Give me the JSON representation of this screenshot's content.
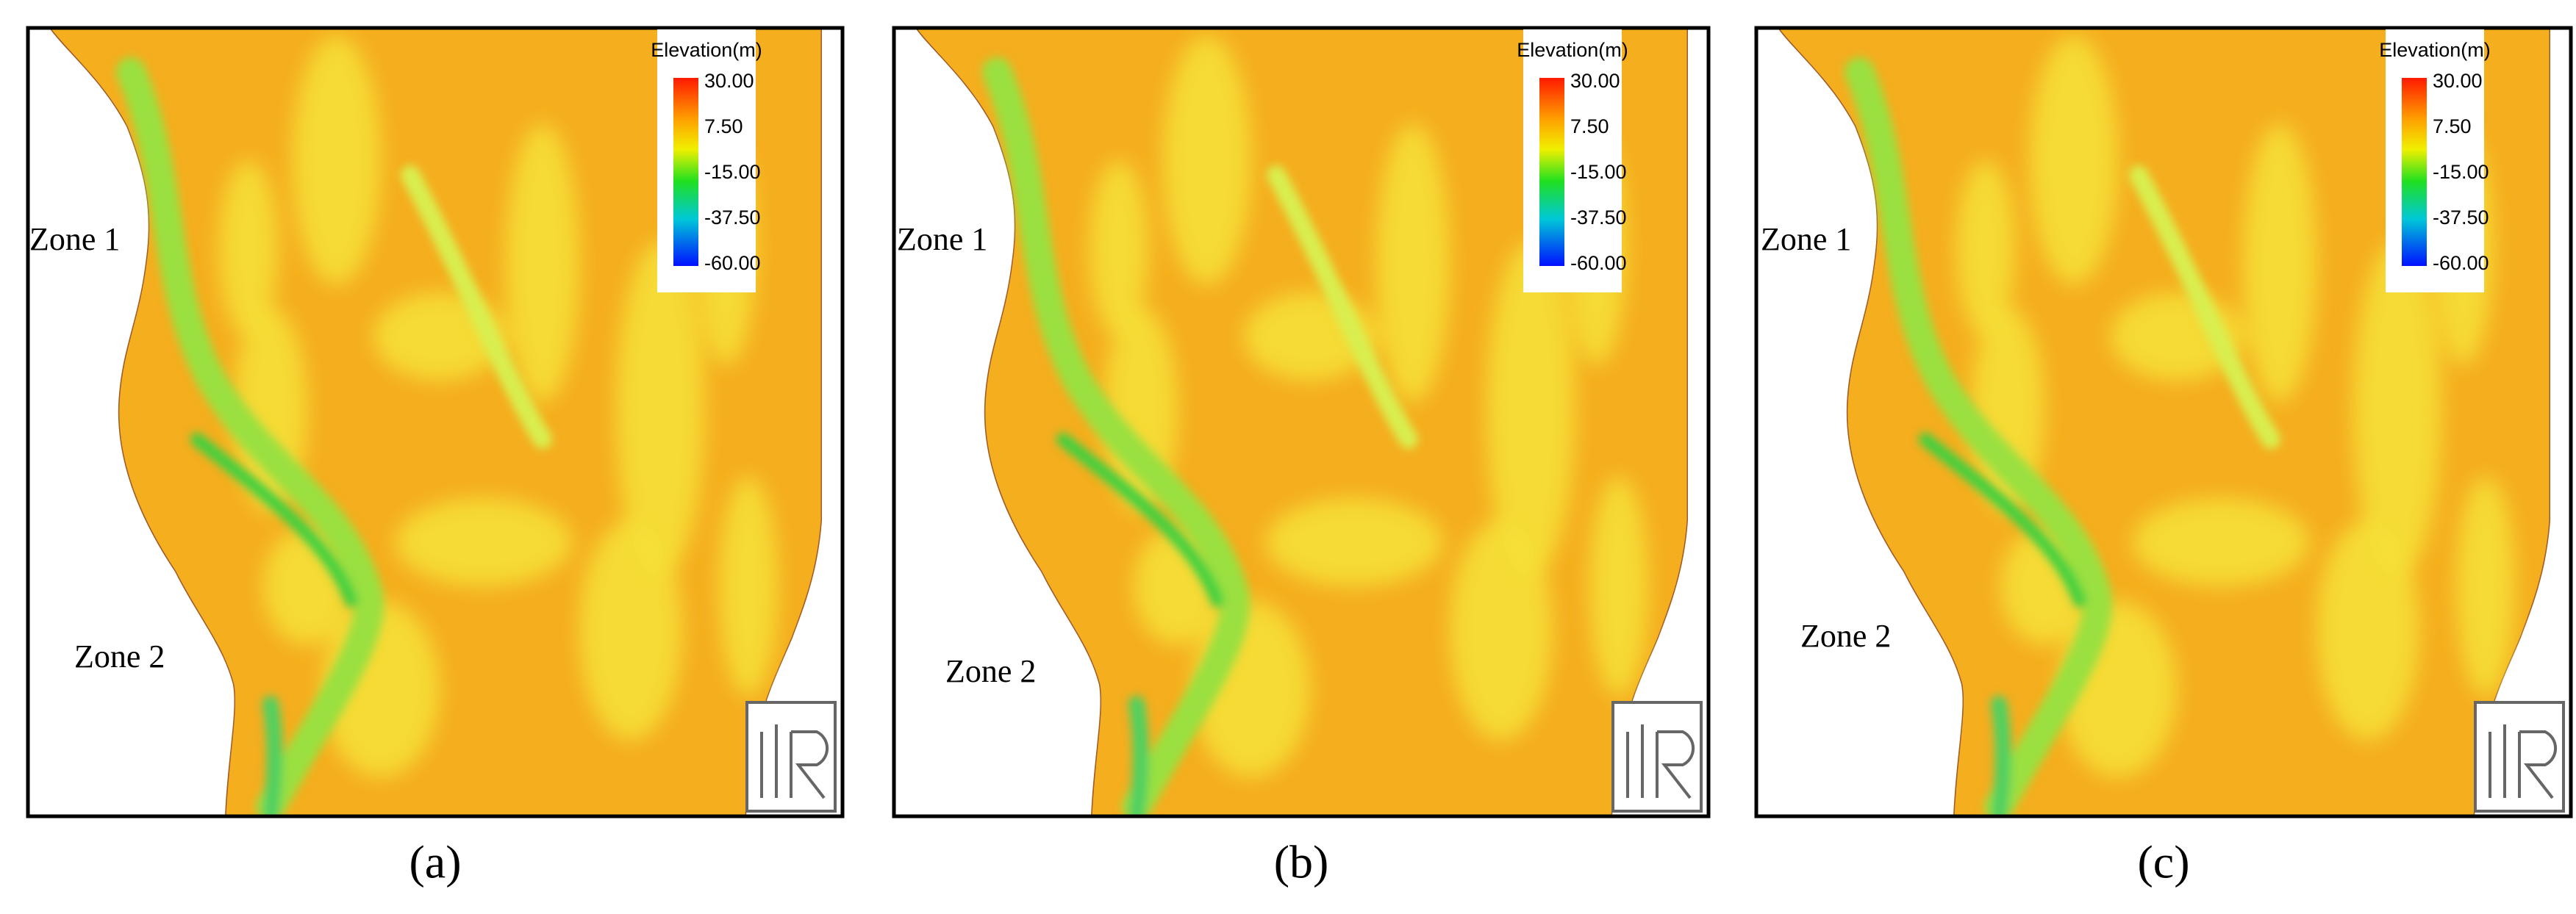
{
  "panels": [
    {
      "caption": "(a)",
      "legend": {
        "title": "Elevation(m)",
        "ticks": [
          "30.00",
          "7.50",
          "-15.00",
          "-37.50",
          "-60.00"
        ]
      },
      "zones": [
        "Zone 1",
        "Zone 2"
      ]
    },
    {
      "caption": "(b)",
      "legend": {
        "title": "Elevation(m)",
        "ticks": [
          "30.00",
          "7.50",
          "-15.00",
          "-37.50",
          "-60.00"
        ]
      },
      "zones": [
        "Zone 1",
        "Zone 2"
      ]
    },
    {
      "caption": "(c)",
      "legend": {
        "title": "Elevation(m)",
        "ticks": [
          "30.00",
          "7.50",
          "-15.00",
          "-37.50",
          "-60.00"
        ]
      },
      "zones": [
        "Zone 1",
        "Zone 2"
      ]
    }
  ]
}
